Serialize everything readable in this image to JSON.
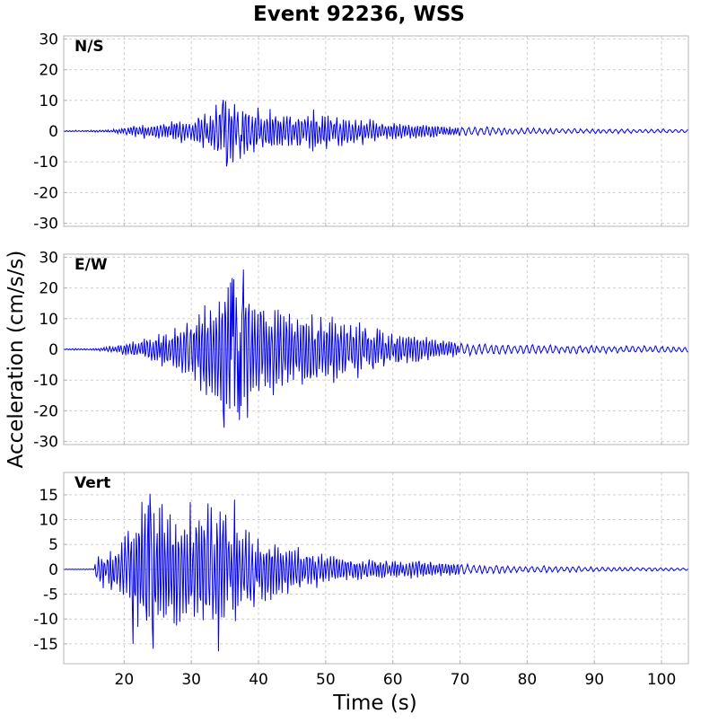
{
  "chart_data": {
    "type": "line",
    "title": "Event 92236, WSS",
    "xlabel": "Time (s)",
    "ylabel": "Acceleration (cm/s/s)",
    "xlim": [
      11,
      104
    ],
    "xticks": [
      20,
      30,
      40,
      50,
      60,
      70,
      80,
      90,
      100
    ],
    "grid": true,
    "panels": [
      {
        "name": "N/S",
        "ylim": [
          -31,
          31
        ],
        "yticks": [
          30,
          20,
          10,
          0,
          -10,
          -20,
          -30
        ],
        "envelope": [
          [
            11,
            0.2
          ],
          [
            18,
            0.4
          ],
          [
            22,
            2
          ],
          [
            26,
            3
          ],
          [
            30,
            4
          ],
          [
            33,
            7
          ],
          [
            35,
            11
          ],
          [
            37,
            9
          ],
          [
            40,
            7
          ],
          [
            44,
            6
          ],
          [
            48,
            6
          ],
          [
            52,
            5
          ],
          [
            56,
            4
          ],
          [
            60,
            3
          ],
          [
            66,
            2.5
          ],
          [
            70,
            1.5
          ],
          [
            80,
            1
          ],
          [
            90,
            0.8
          ],
          [
            104,
            0.6
          ]
        ],
        "peaks": [
          [
            34.8,
            10.2
          ],
          [
            35.3,
            -11.5
          ],
          [
            36.4,
            8.8
          ],
          [
            37.3,
            -9
          ],
          [
            48.2,
            7
          ],
          [
            41.7,
            7.2
          ]
        ]
      },
      {
        "name": "E/W",
        "ylim": [
          -31,
          31
        ],
        "yticks": [
          30,
          20,
          10,
          0,
          -10,
          -20,
          -30
        ],
        "envelope": [
          [
            11,
            0.2
          ],
          [
            15,
            0.3
          ],
          [
            18,
            1
          ],
          [
            22,
            3
          ],
          [
            26,
            6
          ],
          [
            30,
            10
          ],
          [
            33,
            17
          ],
          [
            35,
            22
          ],
          [
            37,
            24
          ],
          [
            40,
            16
          ],
          [
            44,
            13
          ],
          [
            48,
            12
          ],
          [
            52,
            10
          ],
          [
            56,
            8
          ],
          [
            60,
            6
          ],
          [
            65,
            4
          ],
          [
            70,
            2
          ],
          [
            80,
            1.5
          ],
          [
            90,
            1.3
          ],
          [
            104,
            1
          ]
        ],
        "peaks": [
          [
            37.8,
            26
          ],
          [
            34.9,
            -25.5
          ],
          [
            36.1,
            23.2
          ],
          [
            37.2,
            -23
          ],
          [
            35.9,
            21.8
          ],
          [
            38.4,
            -22.3
          ]
        ]
      },
      {
        "name": "Vert",
        "ylim": [
          -19,
          19.5
        ],
        "yticks": [
          15,
          10,
          5,
          0,
          -5,
          -10,
          -15
        ],
        "envelope": [
          [
            11,
            0.05
          ],
          [
            15.5,
            0.1
          ],
          [
            16,
            3
          ],
          [
            19,
            5
          ],
          [
            22,
            13
          ],
          [
            25,
            13
          ],
          [
            28,
            12
          ],
          [
            31,
            12
          ],
          [
            34,
            13
          ],
          [
            37,
            9
          ],
          [
            42,
            6
          ],
          [
            47,
            4
          ],
          [
            52,
            2.5
          ],
          [
            57,
            2
          ],
          [
            62,
            2
          ],
          [
            67,
            1.5
          ],
          [
            72,
            1
          ],
          [
            80,
            0.7
          ],
          [
            90,
            0.5
          ],
          [
            104,
            0.3
          ]
        ],
        "peaks": [
          [
            23.9,
            15.2
          ],
          [
            24.3,
            -16
          ],
          [
            36.4,
            14
          ],
          [
            34,
            -16.5
          ],
          [
            29.9,
            13.5
          ],
          [
            21.3,
            -15
          ]
        ]
      }
    ]
  }
}
